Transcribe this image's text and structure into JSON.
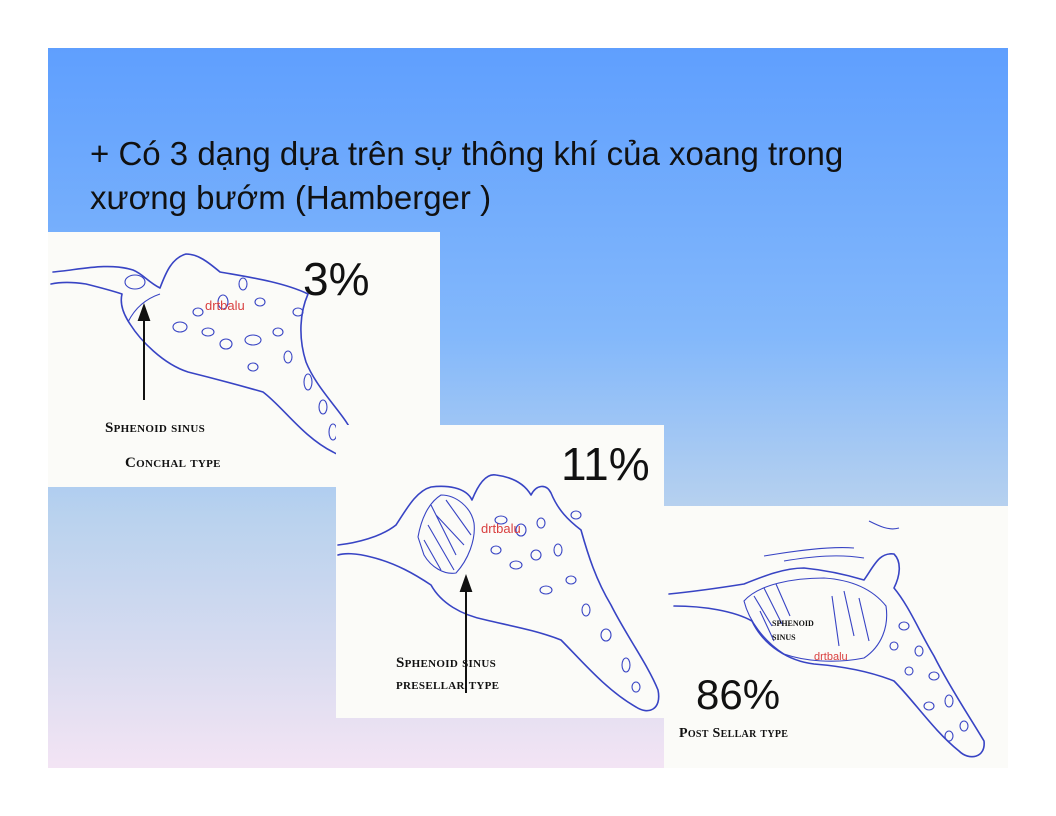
{
  "slide": {
    "title_line1": "+ Có 3 dạng dựa trên sự thông khí của xoang trong",
    "title_line2": "xương bướm (Hamberger )"
  },
  "panels": [
    {
      "percent": "3%",
      "caption_line1": "Sphenoid sinus",
      "caption_line2": "Conchal type",
      "watermark": "drtbalu"
    },
    {
      "percent": "11%",
      "caption_line1": "Sphenoid sinus",
      "caption_line2": "presellar type",
      "watermark": "drtbalu"
    },
    {
      "percent": "86%",
      "caption_line1": "Post Sellar type",
      "inner_label_line1": "sphenoid",
      "inner_label_line2": "sinus",
      "watermark": "drtbalu"
    }
  ]
}
